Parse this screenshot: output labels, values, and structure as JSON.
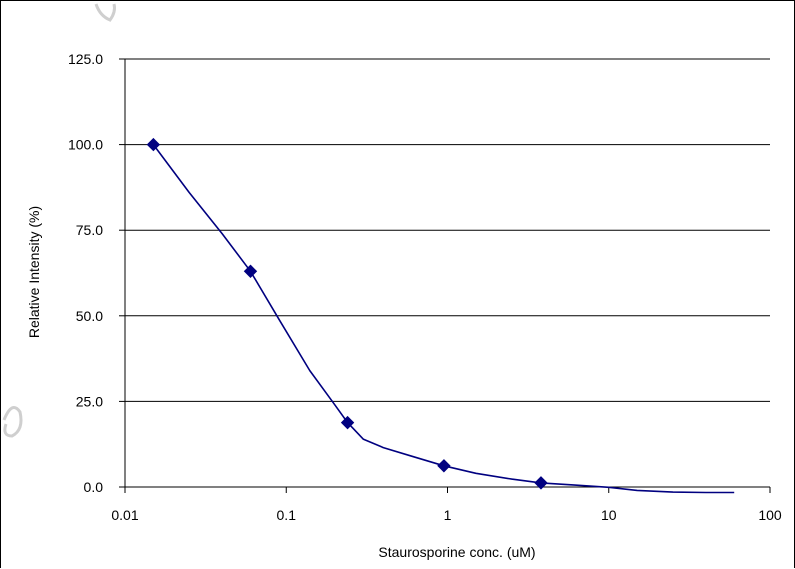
{
  "chart_data": {
    "type": "line",
    "xscale": "log",
    "xlabel": "Staurosporine conc. (uM)",
    "ylabel": "Relative Intensity (%)",
    "xlim": [
      0.01,
      100
    ],
    "ylim": [
      0,
      125
    ],
    "x_ticks": [
      "0.01",
      "0.1",
      "1",
      "10",
      "100"
    ],
    "y_ticks": [
      "0.0",
      "25.0",
      "50.0",
      "75.0",
      "100.0",
      "125.0"
    ],
    "grid": "horizontal",
    "legend": "none",
    "series": [
      {
        "marker": "diamond",
        "color": "#000080",
        "x": [
          0.015,
          0.06,
          0.24,
          0.95,
          3.8
        ],
        "y": [
          100.0,
          63.0,
          18.8,
          6.2,
          1.2
        ]
      }
    ],
    "fit_curve": {
      "color": "#000080",
      "x": [
        0.015,
        0.025,
        0.04,
        0.06,
        0.09,
        0.14,
        0.2,
        0.24,
        0.3,
        0.4,
        0.6,
        0.95,
        1.5,
        2.5,
        3.8,
        6,
        10,
        15,
        25,
        40,
        60
      ],
      "y": [
        100.0,
        86.0,
        74.0,
        63.0,
        49.0,
        34.0,
        24.0,
        18.8,
        14.0,
        11.5,
        9.0,
        6.2,
        4.0,
        2.3,
        1.2,
        0.6,
        -0.1,
        -1.0,
        -1.5,
        -1.6,
        -1.6
      ]
    }
  },
  "colors": {
    "series": "#000080",
    "grid": "#000000",
    "watermark": "#cfcfcf"
  }
}
